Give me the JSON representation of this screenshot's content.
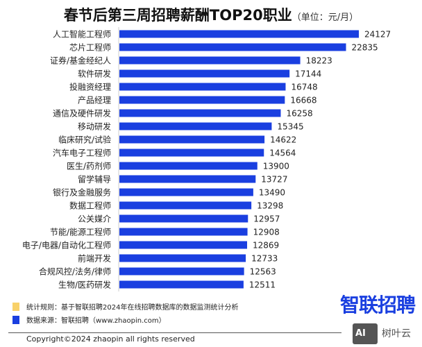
{
  "chart_data": {
    "type": "bar",
    "orientation": "horizontal",
    "title": "春节后第三周招聘薪酬TOP20职业",
    "unit_note": "（单位：元/月）",
    "categories": [
      "人工智能工程师",
      "芯片工程师",
      "证券/基金经纪人",
      "软件研发",
      "投融资经理",
      "产品经理",
      "通信及硬件研发",
      "移动研发",
      "临床研究/试验",
      "汽车电子工程师",
      "医生/药剂师",
      "留学辅导",
      "银行及金融服务",
      "数据工程师",
      "公关媒介",
      "节能/能源工程师",
      "电子/电器/自动化工程师",
      "前端开发",
      "合规风控/法务/律师",
      "生物/医药研发"
    ],
    "values": [
      24127,
      22835,
      18223,
      17144,
      16748,
      16668,
      16258,
      15345,
      14622,
      14564,
      13900,
      13727,
      13490,
      13298,
      12957,
      12908,
      12869,
      12733,
      12563,
      12511
    ],
    "xlim": [
      0,
      24127
    ],
    "grid": false,
    "bar_color": "#1a3fe0"
  },
  "footer": {
    "rule": "统计规则：基于智联招聘2024年在线招聘数据库的数据监测统计分析",
    "source": "数据来源：智联招聘（www.zhaopin.com）",
    "rule_color": "#f8d16a",
    "source_color": "#1a3fe0",
    "copyright": "Copyright©2024 zhaopin all rights reserved",
    "logo": "智联招聘",
    "watermark": "智联招聘",
    "badge": "AI",
    "badge_text": "树叶云"
  }
}
